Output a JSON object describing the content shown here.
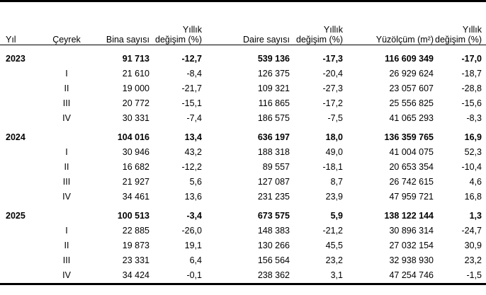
{
  "table": {
    "columns": [
      {
        "id": "yil",
        "label": "Yıl",
        "align": "left"
      },
      {
        "id": "ceyrek",
        "label": "Çeyrek",
        "align": "center"
      },
      {
        "id": "bina-sayisi",
        "label": "Bina sayısı",
        "align": "right"
      },
      {
        "id": "bina-degisim",
        "label": "Yıllık değişim (%)",
        "lines": [
          "Yıllık",
          "değişim (%)"
        ],
        "align": "right"
      },
      {
        "id": "daire-sayisi",
        "label": "Daire sayısı",
        "align": "right"
      },
      {
        "id": "daire-degisim",
        "label": "Yıllık değişim (%)",
        "lines": [
          "Yıllık",
          "değişim (%)"
        ],
        "align": "right"
      },
      {
        "id": "yuzolcum",
        "label": "Yüzölçüm (m²)",
        "align": "right"
      },
      {
        "id": "yuzolcum-degisim",
        "label": "Yıllık değişim (%)",
        "lines": [
          "Yıllık",
          "değişim (%)"
        ],
        "align": "right"
      }
    ],
    "groups": [
      {
        "year": "2023",
        "total": [
          "91 713",
          "-12,7",
          "539 136",
          "-17,3",
          "116 609 349",
          "-17,0"
        ],
        "quarters": [
          {
            "label": "I",
            "values": [
              "21 610",
              "-8,4",
              "126 375",
              "-20,4",
              "26 929 624",
              "-18,7"
            ]
          },
          {
            "label": "II",
            "values": [
              "19 000",
              "-21,7",
              "109 321",
              "-27,3",
              "23 057 607",
              "-28,8"
            ]
          },
          {
            "label": "III",
            "values": [
              "20 772",
              "-15,1",
              "116 865",
              "-17,2",
              "25 556 825",
              "-15,6"
            ]
          },
          {
            "label": "IV",
            "values": [
              "30 331",
              "-7,4",
              "186 575",
              "-7,5",
              "41 065 293",
              "-8,3"
            ]
          }
        ]
      },
      {
        "year": "2024",
        "total": [
          "104 016",
          "13,4",
          "636 197",
          "18,0",
          "136 359 765",
          "16,9"
        ],
        "quarters": [
          {
            "label": "I",
            "values": [
              "30 946",
              "43,2",
              "188 318",
              "49,0",
              "41 004 075",
              "52,3"
            ]
          },
          {
            "label": "II",
            "values": [
              "16 682",
              "-12,2",
              "89 557",
              "-18,1",
              "20 653 354",
              "-10,4"
            ]
          },
          {
            "label": "III",
            "values": [
              "21 927",
              "5,6",
              "127 087",
              "8,7",
              "26 742 615",
              "4,6"
            ]
          },
          {
            "label": "IV",
            "values": [
              "34 461",
              "13,6",
              "231 235",
              "23,9",
              "47 959 721",
              "16,8"
            ]
          }
        ]
      },
      {
        "year": "2025",
        "total": [
          "100 513",
          "-3,4",
          "673 575",
          "5,9",
          "138 122 144",
          "1,3"
        ],
        "quarters": [
          {
            "label": "I",
            "values": [
              "22 885",
              "-26,0",
              "148 383",
              "-21,2",
              "30 896 314",
              "-24,7"
            ]
          },
          {
            "label": "II",
            "values": [
              "19 873",
              "19,1",
              "130 266",
              "45,5",
              "27 032 154",
              "30,9"
            ]
          },
          {
            "label": "III",
            "values": [
              "23 331",
              "6,4",
              "156 564",
              "23,2",
              "32 938 930",
              "23,2"
            ]
          },
          {
            "label": "IV",
            "values": [
              "34 424",
              "-0,1",
              "238 362",
              "3,1",
              "47 254 746",
              "-1,5"
            ]
          }
        ]
      }
    ]
  }
}
